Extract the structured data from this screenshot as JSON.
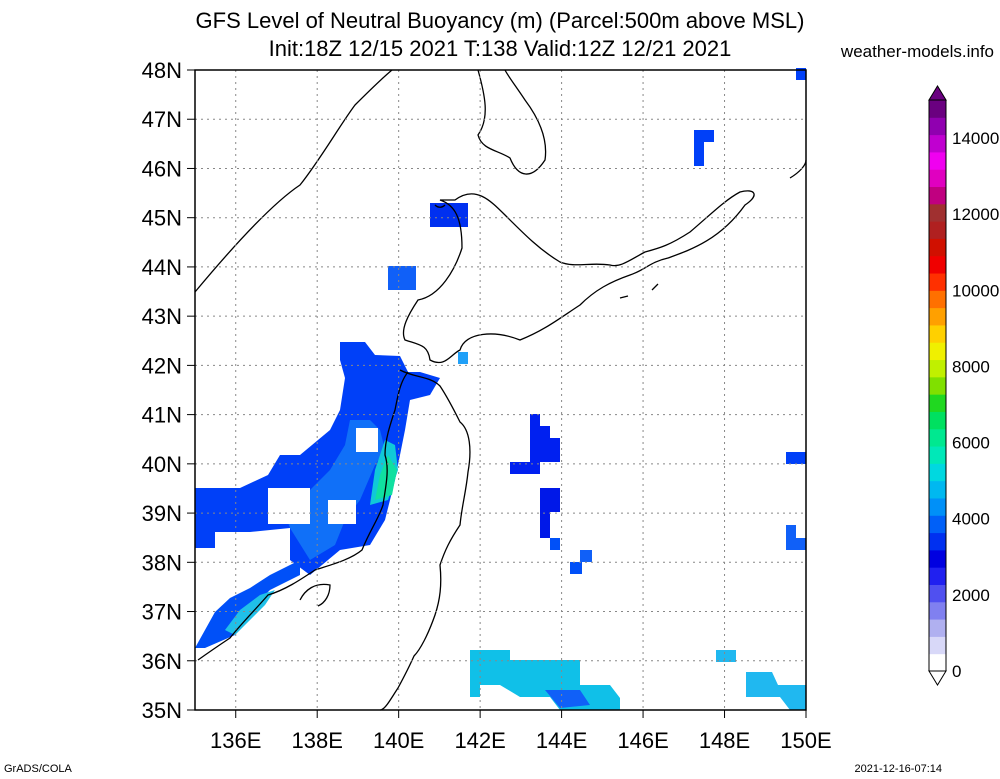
{
  "title_line1": "GFS Level of Neutral Buoyancy (m) (Parcel:500m above MSL)",
  "title_line2": "Init:18Z 12/15 2021 T:138 Valid:12Z 12/21 2021",
  "credit": "weather-models.info",
  "footer_left": "GrADS/COLA",
  "footer_right": "2021-12-16-07:14",
  "map": {
    "lon_range": [
      135,
      150
    ],
    "lat_range": [
      35,
      48
    ],
    "lat_labels": [
      "35N",
      "36N",
      "37N",
      "38N",
      "39N",
      "40N",
      "41N",
      "42N",
      "43N",
      "44N",
      "45N",
      "46N",
      "47N",
      "48N"
    ],
    "lon_labels": [
      "136E",
      "138E",
      "140E",
      "142E",
      "144E",
      "146E",
      "148E",
      "150E"
    ],
    "lat_values": [
      35,
      36,
      37,
      38,
      39,
      40,
      41,
      42,
      43,
      44,
      45,
      46,
      47,
      48
    ],
    "lon_values": [
      136,
      138,
      140,
      142,
      144,
      146,
      148,
      150
    ]
  },
  "colorbar": {
    "labels": [
      "0",
      "2000",
      "4000",
      "6000",
      "8000",
      "10000",
      "12000",
      "14000"
    ],
    "values": [
      0,
      2000,
      4000,
      6000,
      8000,
      10000,
      12000,
      14000
    ],
    "max": 15000,
    "colors": [
      "#ffffff",
      "#d8d8f8",
      "#b0b0f0",
      "#8080f0",
      "#5050f0",
      "#2020f0",
      "#0000e0",
      "#0030f0",
      "#0060f8",
      "#0090f8",
      "#00b8f0",
      "#00d8e0",
      "#00e8b8",
      "#00e890",
      "#00e060",
      "#20d820",
      "#80e000",
      "#c0f000",
      "#f0f000",
      "#ffd000",
      "#ffa000",
      "#ff7000",
      "#ff3000",
      "#f00000",
      "#d01000",
      "#b02020",
      "#a03030",
      "#c00080",
      "#e000c0",
      "#f000f0",
      "#c000d0",
      "#9000b0",
      "#6a0080"
    ]
  }
}
